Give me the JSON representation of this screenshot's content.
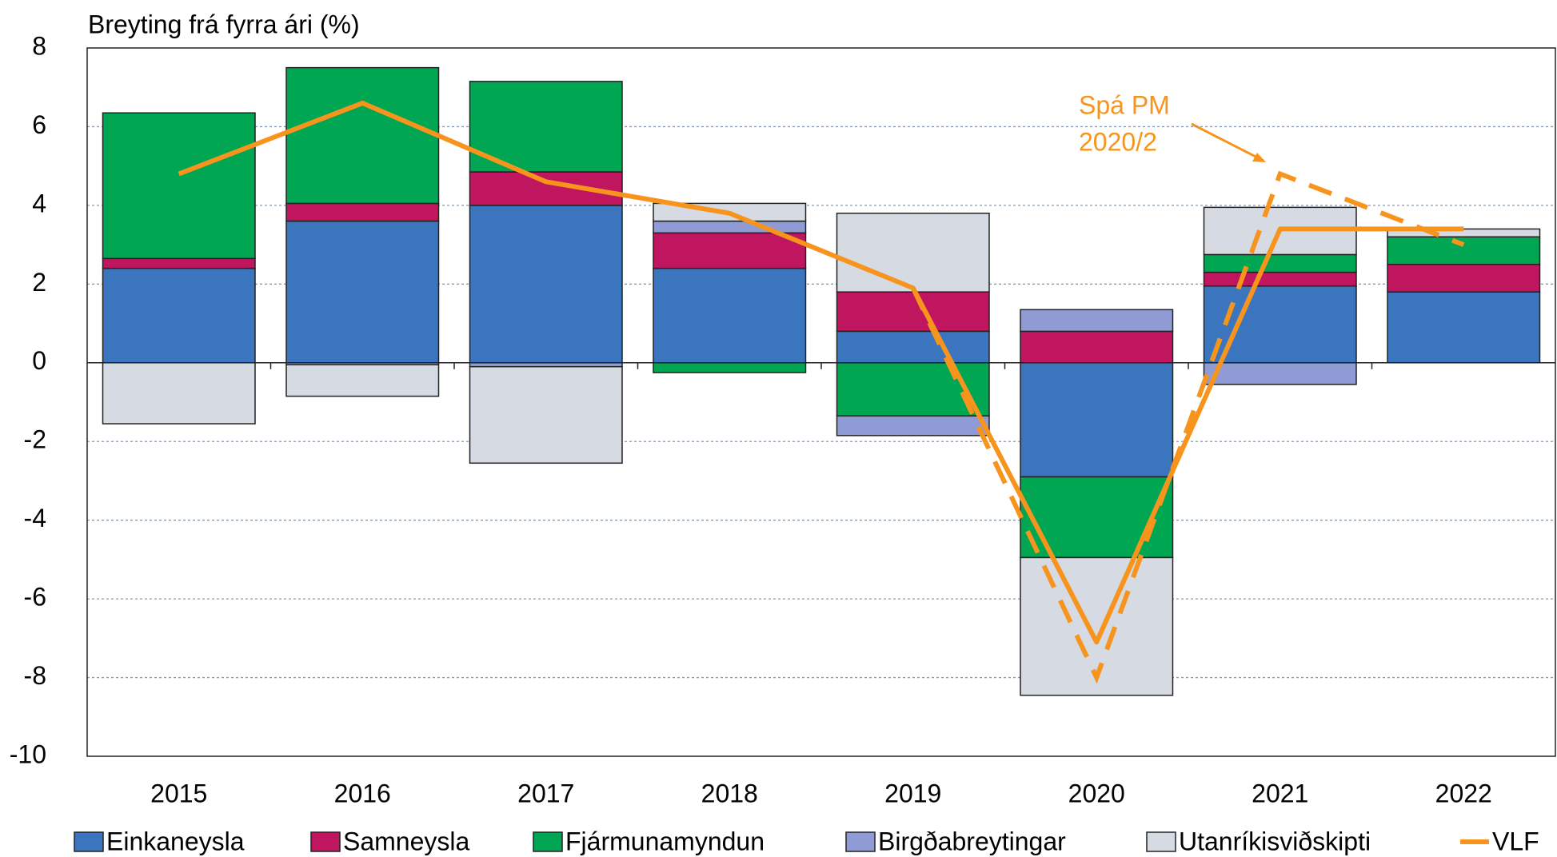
{
  "chart_data": {
    "type": "stacked-bar-line",
    "ylabel": "Breyting frá fyrra ári (%)",
    "categories": [
      "2015",
      "2016",
      "2017",
      "2018",
      "2019",
      "2020",
      "2021",
      "2022"
    ],
    "series": [
      {
        "name": "Einkaneysla",
        "color": "#3a75bd",
        "values": [
          2.4,
          3.6,
          4.0,
          2.4,
          0.8,
          -2.9,
          1.95,
          1.8
        ]
      },
      {
        "name": "Samneysla",
        "color": "#c0155f",
        "values": [
          0.25,
          0.45,
          0.85,
          0.9,
          1.0,
          0.8,
          0.35,
          0.7
        ]
      },
      {
        "name": "Fjármunamyndun",
        "color": "#00a651",
        "values": [
          3.7,
          3.45,
          2.3,
          -0.25,
          -1.35,
          -2.05,
          0.45,
          0.7
        ]
      },
      {
        "name": "Birgðabreytingar",
        "color": "#8e9bd4",
        "values": [
          0,
          -0.05,
          -0.1,
          0.3,
          -0.5,
          0.55,
          -0.55,
          0
        ]
      },
      {
        "name": "Utanríkisviðskipti",
        "color": "#d6dae3",
        "values": [
          -1.55,
          -0.8,
          -2.45,
          0.45,
          2.0,
          -3.5,
          1.2,
          0.2
        ]
      },
      {
        "name": "VLF",
        "color": "#f7941d",
        "kind": "line",
        "values": [
          4.8,
          6.6,
          4.6,
          3.8,
          1.9,
          -7.1,
          3.4,
          3.4
        ]
      }
    ],
    "forecast": {
      "annotation": [
        "Spá PM",
        "2020/2"
      ],
      "color": "#f7941d",
      "values": [
        null,
        null,
        null,
        null,
        1.9,
        -8.0,
        4.8,
        3.0
      ]
    },
    "ylim": [
      -10,
      8
    ],
    "yticks": [
      -10,
      -8,
      -6,
      -4,
      -2,
      0,
      2,
      4,
      6,
      8
    ],
    "grid": true,
    "legend": "bottom"
  }
}
